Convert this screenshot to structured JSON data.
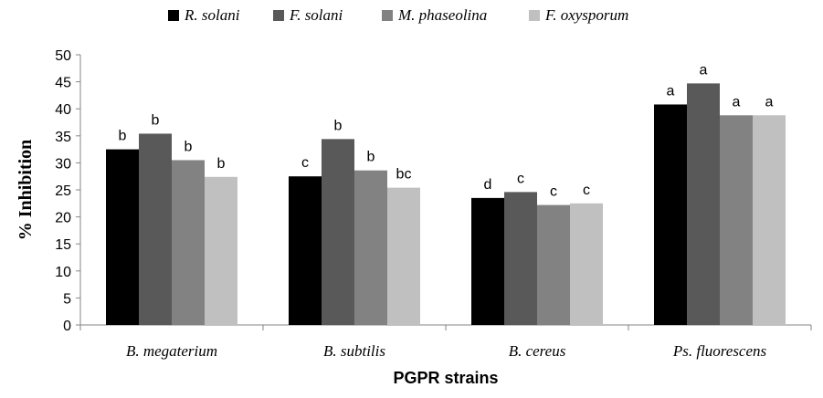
{
  "chart_data": {
    "type": "bar",
    "title": "",
    "xlabel": "PGPR strains",
    "ylabel": "% Inhibition",
    "ylim": [
      0,
      50
    ],
    "yticks": [
      0,
      5,
      10,
      15,
      20,
      25,
      30,
      35,
      40,
      45,
      50
    ],
    "grid": false,
    "legend_position": "top-center",
    "categories": [
      "B. megaterium",
      "B. subtilis",
      "B. cereus",
      "Ps. fluorescens"
    ],
    "series": [
      {
        "name": "R. solani",
        "color": "#000000",
        "values": [
          32.5,
          27.5,
          23.5,
          40.8
        ],
        "labels": [
          "b",
          "c",
          "d",
          "a"
        ]
      },
      {
        "name": "F. solani",
        "color": "#595959",
        "values": [
          35.4,
          34.4,
          24.6,
          44.7
        ],
        "labels": [
          "b",
          "b",
          "c",
          "a"
        ]
      },
      {
        "name": "M. phaseolina",
        "color": "#828282",
        "values": [
          30.5,
          28.6,
          22.2,
          38.8
        ],
        "labels": [
          "b",
          "b",
          "c",
          "a"
        ]
      },
      {
        "name": "F. oxysporum",
        "color": "#c0c0c0",
        "values": [
          27.4,
          25.4,
          22.5,
          38.8
        ],
        "labels": [
          "b",
          "bc",
          "c",
          "a"
        ]
      }
    ]
  }
}
